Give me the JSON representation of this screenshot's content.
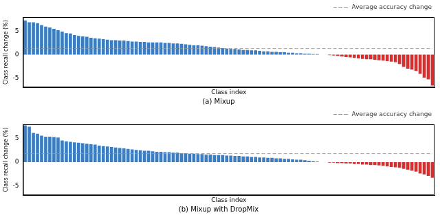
{
  "chart_data": [
    {
      "type": "bar",
      "title": "(a) Mixup",
      "x_label": "Class index",
      "y_label": "Class recall change (%)",
      "categories": [
        null,
        null,
        null,
        null,
        null,
        null,
        null,
        null,
        null,
        null,
        null,
        null,
        null,
        null,
        null,
        null,
        null,
        null,
        null,
        null,
        null,
        null,
        null,
        null,
        null,
        null,
        null,
        null,
        null,
        null,
        null,
        null,
        null,
        null,
        null,
        null,
        null,
        null,
        null,
        null,
        null,
        null,
        null,
        null,
        null,
        null,
        null,
        null,
        null,
        null,
        null,
        null,
        null,
        null,
        null,
        null,
        null,
        null,
        null,
        null,
        null,
        null,
        null,
        null,
        null,
        null,
        null,
        null,
        null,
        null,
        null,
        null,
        null,
        null,
        null,
        null,
        null,
        null,
        null,
        null,
        null,
        null,
        null,
        null,
        null,
        null,
        null,
        null,
        null,
        null,
        null,
        null,
        null,
        null,
        null,
        null,
        null,
        null,
        null,
        null
      ],
      "values": [
        7.3,
        6.9,
        6.9,
        6.7,
        6.3,
        6.0,
        5.8,
        5.5,
        5.2,
        4.9,
        4.6,
        4.5,
        4.2,
        4.0,
        3.9,
        3.8,
        3.6,
        3.5,
        3.4,
        3.3,
        3.2,
        3.1,
        3.1,
        3.0,
        3.0,
        2.9,
        2.8,
        2.8,
        2.7,
        2.7,
        2.6,
        2.6,
        2.6,
        2.6,
        2.5,
        2.5,
        2.4,
        2.4,
        2.3,
        2.2,
        2.1,
        2.0,
        2.0,
        1.9,
        1.8,
        1.7,
        1.6,
        1.5,
        1.4,
        1.3,
        1.2,
        1.2,
        1.1,
        1.0,
        1.0,
        0.9,
        0.9,
        0.8,
        0.7,
        0.7,
        0.6,
        0.6,
        0.5,
        0.5,
        0.4,
        0.4,
        0.3,
        0.3,
        0.2,
        0.2,
        0.1,
        0.1,
        0,
        0,
        -0.1,
        -0.2,
        -0.3,
        -0.4,
        -0.5,
        -0.6,
        -0.7,
        -0.8,
        -0.9,
        -1.0,
        -1.0,
        -1.1,
        -1.2,
        -1.3,
        -1.4,
        -1.5,
        -1.6,
        -2.0,
        -2.6,
        -3.0,
        -3.2,
        -3.5,
        -4.1,
        -4.9,
        -5.3,
        -6.6
      ],
      "colors": [
        "#3a7dc2",
        "#3a7dc2",
        "#3a7dc2",
        "#3a7dc2",
        "#3a7dc2",
        "#3a7dc2",
        "#3a7dc2",
        "#3a7dc2",
        "#3a7dc2",
        "#3a7dc2",
        "#3a7dc2",
        "#3a7dc2",
        "#3a7dc2",
        "#3a7dc2",
        "#3a7dc2",
        "#3a7dc2",
        "#3a7dc2",
        "#3a7dc2",
        "#3a7dc2",
        "#3a7dc2",
        "#3a7dc2",
        "#3a7dc2",
        "#3a7dc2",
        "#3a7dc2",
        "#3a7dc2",
        "#3a7dc2",
        "#3a7dc2",
        "#3a7dc2",
        "#3a7dc2",
        "#3a7dc2",
        "#3a7dc2",
        "#3a7dc2",
        "#3a7dc2",
        "#3a7dc2",
        "#3a7dc2",
        "#3a7dc2",
        "#3a7dc2",
        "#3a7dc2",
        "#3a7dc2",
        "#3a7dc2",
        "#3a7dc2",
        "#3a7dc2",
        "#3a7dc2",
        "#3a7dc2",
        "#3a7dc2",
        "#3a7dc2",
        "#3a7dc2",
        "#3a7dc2",
        "#3a7dc2",
        "#3a7dc2",
        "#3a7dc2",
        "#3a7dc2",
        "#3a7dc2",
        "#3a7dc2",
        "#3a7dc2",
        "#3a7dc2",
        "#3a7dc2",
        "#3a7dc2",
        "#3a7dc2",
        "#3a7dc2",
        "#3a7dc2",
        "#3a7dc2",
        "#3a7dc2",
        "#3a7dc2",
        "#3a7dc2",
        "#3a7dc2",
        "#3a7dc2",
        "#3a7dc2",
        "#3a7dc2",
        "#3a7dc2",
        "#3a7dc2",
        "#3a7dc2",
        "#3a7dc2",
        "#3a7dc2",
        "#d62f2f",
        "#d62f2f",
        "#d62f2f",
        "#d62f2f",
        "#d62f2f",
        "#d62f2f",
        "#d62f2f",
        "#d62f2f",
        "#d62f2f",
        "#d62f2f",
        "#d62f2f",
        "#d62f2f",
        "#d62f2f",
        "#d62f2f",
        "#d62f2f",
        "#d62f2f",
        "#d62f2f",
        "#d62f2f",
        "#d62f2f",
        "#d62f2f",
        "#d62f2f",
        "#d62f2f",
        "#d62f2f",
        "#d62f2f",
        "#d62f2f",
        "#d62f2f"
      ],
      "average": {
        "name": "Average accuracy change",
        "value": 1.3,
        "color": "#999999",
        "line_style": "dashed"
      },
      "ylim": [
        -7,
        8
      ],
      "yticks": [
        -5,
        0,
        5
      ],
      "grid": false,
      "legend": "upper right",
      "tick_labels": "y"
    },
    {
      "type": "bar",
      "title": "(b) Mixup with DropMix",
      "x_label": "Class index",
      "y_label": "Class recall change (%)",
      "categories": [
        null,
        null,
        null,
        null,
        null,
        null,
        null,
        null,
        null,
        null,
        null,
        null,
        null,
        null,
        null,
        null,
        null,
        null,
        null,
        null,
        null,
        null,
        null,
        null,
        null,
        null,
        null,
        null,
        null,
        null,
        null,
        null,
        null,
        null,
        null,
        null,
        null,
        null,
        null,
        null,
        null,
        null,
        null,
        null,
        null,
        null,
        null,
        null,
        null,
        null,
        null,
        null,
        null,
        null,
        null,
        null,
        null,
        null,
        null,
        null,
        null,
        null,
        null,
        null,
        null,
        null,
        null,
        null,
        null,
        null,
        null,
        null,
        null,
        null,
        null,
        null,
        null,
        null,
        null,
        null,
        null,
        null,
        null,
        null,
        null,
        null,
        null,
        null,
        null,
        null,
        null,
        null,
        null,
        null,
        null,
        null,
        null,
        null,
        null,
        null
      ],
      "values": [
        7.8,
        7.5,
        6.2,
        6.0,
        5.6,
        5.4,
        5.4,
        5.3,
        5.2,
        4.6,
        4.4,
        4.3,
        4.2,
        4.1,
        4.0,
        3.9,
        3.8,
        3.7,
        3.5,
        3.4,
        3.3,
        3.2,
        3.1,
        3.0,
        2.9,
        2.8,
        2.7,
        2.6,
        2.5,
        2.4,
        2.4,
        2.3,
        2.2,
        2.2,
        2.1,
        2.1,
        2.0,
        2.0,
        1.9,
        1.9,
        1.8,
        1.8,
        1.7,
        1.7,
        1.6,
        1.6,
        1.5,
        1.5,
        1.5,
        1.4,
        1.4,
        1.3,
        1.3,
        1.2,
        1.2,
        1.1,
        1.1,
        1.0,
        1.0,
        0.9,
        0.9,
        0.8,
        0.8,
        0.7,
        0.7,
        0.6,
        0.5,
        0.5,
        0.4,
        0.3,
        0.2,
        0.1,
        0,
        0,
        -0.1,
        -0.1,
        -0.2,
        -0.2,
        -0.3,
        -0.3,
        -0.4,
        -0.4,
        -0.5,
        -0.5,
        -0.6,
        -0.6,
        -0.7,
        -0.8,
        -0.9,
        -1.0,
        -1.1,
        -1.2,
        -1.4,
        -1.6,
        -1.8,
        -2.0,
        -2.4,
        -2.6,
        -2.9,
        -3.3
      ],
      "colors": [
        "#3a7dc2",
        "#3a7dc2",
        "#3a7dc2",
        "#3a7dc2",
        "#3a7dc2",
        "#3a7dc2",
        "#3a7dc2",
        "#3a7dc2",
        "#3a7dc2",
        "#3a7dc2",
        "#3a7dc2",
        "#3a7dc2",
        "#3a7dc2",
        "#3a7dc2",
        "#3a7dc2",
        "#3a7dc2",
        "#3a7dc2",
        "#3a7dc2",
        "#3a7dc2",
        "#3a7dc2",
        "#3a7dc2",
        "#3a7dc2",
        "#3a7dc2",
        "#3a7dc2",
        "#3a7dc2",
        "#3a7dc2",
        "#3a7dc2",
        "#3a7dc2",
        "#3a7dc2",
        "#3a7dc2",
        "#3a7dc2",
        "#3a7dc2",
        "#3a7dc2",
        "#3a7dc2",
        "#3a7dc2",
        "#3a7dc2",
        "#3a7dc2",
        "#3a7dc2",
        "#3a7dc2",
        "#3a7dc2",
        "#3a7dc2",
        "#3a7dc2",
        "#3a7dc2",
        "#3a7dc2",
        "#3a7dc2",
        "#3a7dc2",
        "#3a7dc2",
        "#3a7dc2",
        "#3a7dc2",
        "#3a7dc2",
        "#3a7dc2",
        "#3a7dc2",
        "#3a7dc2",
        "#3a7dc2",
        "#3a7dc2",
        "#3a7dc2",
        "#3a7dc2",
        "#3a7dc2",
        "#3a7dc2",
        "#3a7dc2",
        "#3a7dc2",
        "#3a7dc2",
        "#3a7dc2",
        "#3a7dc2",
        "#3a7dc2",
        "#3a7dc2",
        "#3a7dc2",
        "#3a7dc2",
        "#3a7dc2",
        "#3a7dc2",
        "#3a7dc2",
        "#3a7dc2",
        "#3a7dc2",
        "#3a7dc2",
        "#d62f2f",
        "#d62f2f",
        "#d62f2f",
        "#d62f2f",
        "#d62f2f",
        "#d62f2f",
        "#d62f2f",
        "#d62f2f",
        "#d62f2f",
        "#d62f2f",
        "#d62f2f",
        "#d62f2f",
        "#d62f2f",
        "#d62f2f",
        "#d62f2f",
        "#d62f2f",
        "#d62f2f",
        "#d62f2f",
        "#d62f2f",
        "#d62f2f",
        "#d62f2f",
        "#d62f2f",
        "#d62f2f",
        "#d62f2f",
        "#d62f2f",
        "#d62f2f"
      ],
      "average": {
        "name": "Average accuracy change",
        "value": 1.8,
        "color": "#999999",
        "line_style": "dashed"
      },
      "ylim": [
        -7,
        8
      ],
      "yticks": [
        -5,
        0,
        5
      ],
      "grid": false,
      "legend": "upper right",
      "tick_labels": "y"
    }
  ]
}
